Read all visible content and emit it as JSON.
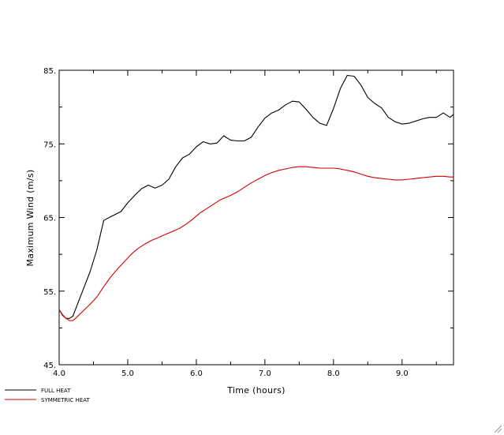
{
  "chart_data": {
    "type": "line",
    "xlabel": "Time (hours)",
    "ylabel": "Maximum Wind (m/s)",
    "xlim": [
      4.0,
      9.75
    ],
    "ylim": [
      45,
      85
    ],
    "x_ticks": [
      4.0,
      5.0,
      6.0,
      7.0,
      8.0,
      9.0
    ],
    "x_tick_labels": [
      "4.0",
      "5.0",
      "6.0",
      "7.0",
      "8.0",
      "9.0"
    ],
    "y_ticks": [
      45,
      55,
      65,
      75,
      85
    ],
    "y_tick_labels": [
      "45.",
      "55.",
      "65.",
      "75.",
      "85."
    ],
    "grid": false,
    "legend_position": "bottom-left",
    "series": [
      {
        "name": "FULL HEAT",
        "color": "#000000",
        "x": [
          4.0,
          4.05,
          4.1,
          4.15,
          4.2,
          4.25,
          4.35,
          4.45,
          4.55,
          4.65,
          4.75,
          4.9,
          5.0,
          5.1,
          5.2,
          5.3,
          5.4,
          5.5,
          5.6,
          5.7,
          5.8,
          5.9,
          6.0,
          6.1,
          6.2,
          6.3,
          6.4,
          6.5,
          6.6,
          6.7,
          6.8,
          6.9,
          7.0,
          7.1,
          7.2,
          7.3,
          7.4,
          7.5,
          7.6,
          7.7,
          7.8,
          7.9,
          8.0,
          8.1,
          8.2,
          8.3,
          8.4,
          8.5,
          8.6,
          8.7,
          8.8,
          8.9,
          9.0,
          9.1,
          9.2,
          9.3,
          9.4,
          9.5,
          9.6,
          9.7,
          9.75
        ],
        "values": [
          52.5,
          51.7,
          51.3,
          51.3,
          51.6,
          52.8,
          55.2,
          57.6,
          60.6,
          64.6,
          65.1,
          65.8,
          67.0,
          68.0,
          68.9,
          69.4,
          69.0,
          69.4,
          70.2,
          71.9,
          73.1,
          73.6,
          74.6,
          75.3,
          75.0,
          75.1,
          76.1,
          75.5,
          75.4,
          75.4,
          75.9,
          77.3,
          78.5,
          79.2,
          79.6,
          80.3,
          80.8,
          80.7,
          79.7,
          78.6,
          77.8,
          77.5,
          79.8,
          82.5,
          84.3,
          84.2,
          83.0,
          81.3,
          80.5,
          79.9,
          78.6,
          78.0,
          77.7,
          77.8,
          78.1,
          78.4,
          78.6,
          78.6,
          79.2,
          78.6,
          79.0
        ]
      },
      {
        "name": "SYMMETRIC HEAT",
        "color": "#d40000",
        "x": [
          4.0,
          4.05,
          4.1,
          4.15,
          4.2,
          4.25,
          4.35,
          4.45,
          4.55,
          4.65,
          4.75,
          4.85,
          4.95,
          5.05,
          5.15,
          5.25,
          5.35,
          5.45,
          5.55,
          5.65,
          5.75,
          5.85,
          5.95,
          6.05,
          6.15,
          6.25,
          6.35,
          6.5,
          6.6,
          6.7,
          6.8,
          6.9,
          7.0,
          7.1,
          7.2,
          7.3,
          7.4,
          7.5,
          7.6,
          7.7,
          7.8,
          7.9,
          8.0,
          8.1,
          8.2,
          8.3,
          8.4,
          8.5,
          8.6,
          8.7,
          8.8,
          8.9,
          9.0,
          9.1,
          9.2,
          9.3,
          9.4,
          9.5,
          9.6,
          9.7,
          9.75
        ],
        "values": [
          52.5,
          51.8,
          51.3,
          51.0,
          51.0,
          51.4,
          52.3,
          53.2,
          54.2,
          55.6,
          56.9,
          58.0,
          59.0,
          60.0,
          60.8,
          61.4,
          61.9,
          62.3,
          62.7,
          63.1,
          63.5,
          64.1,
          64.8,
          65.6,
          66.2,
          66.8,
          67.4,
          68.0,
          68.5,
          69.1,
          69.7,
          70.2,
          70.7,
          71.1,
          71.4,
          71.6,
          71.8,
          71.9,
          71.9,
          71.8,
          71.7,
          71.7,
          71.7,
          71.6,
          71.4,
          71.2,
          70.9,
          70.6,
          70.4,
          70.3,
          70.2,
          70.1,
          70.1,
          70.2,
          70.3,
          70.4,
          70.5,
          70.6,
          70.6,
          70.5,
          70.5
        ]
      }
    ]
  }
}
